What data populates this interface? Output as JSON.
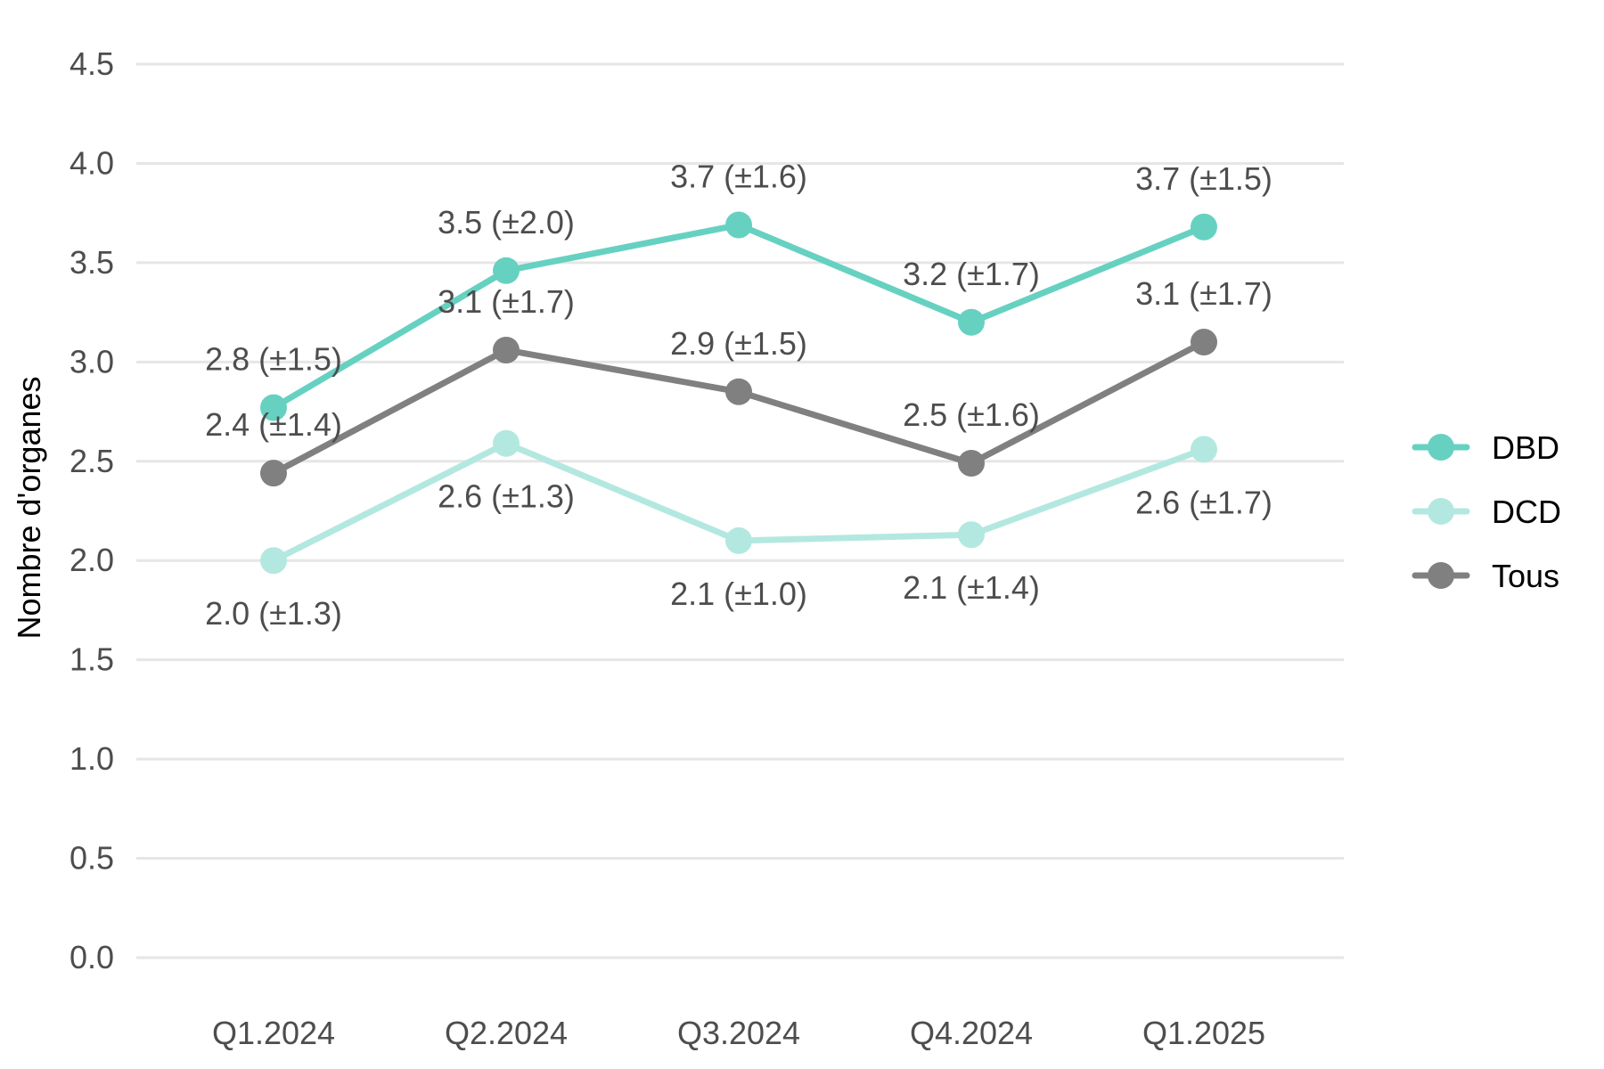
{
  "chart_data": {
    "type": "line",
    "title": "",
    "xlabel": "",
    "ylabel": "Nombre d'organes",
    "categories": [
      "Q1.2024",
      "Q2.2024",
      "Q3.2024",
      "Q4.2024",
      "Q1.2025"
    ],
    "ylim": [
      0,
      4.5
    ],
    "yticks": [
      "0.0",
      "0.5",
      "1.0",
      "1.5",
      "2.0",
      "2.5",
      "3.0",
      "3.5",
      "4.0",
      "4.5"
    ],
    "grid": "horizontal",
    "legend_position": "right",
    "series": [
      {
        "name": "DBD",
        "color": "#66d1c1",
        "values": [
          2.77,
          3.46,
          3.69,
          3.2,
          3.68
        ],
        "labels": [
          "2.8 (±1.5)",
          "3.5 (±2.0)",
          "3.7 (±1.6)",
          "3.2 (±1.7)",
          "3.7 (±1.5)"
        ]
      },
      {
        "name": "DCD",
        "color": "#b3e8e0",
        "values": [
          2.0,
          2.59,
          2.1,
          2.13,
          2.56
        ],
        "labels": [
          "2.0 (±1.3)",
          "2.6 (±1.3)",
          "2.1 (±1.0)",
          "2.1 (±1.4)",
          "2.6 (±1.7)"
        ]
      },
      {
        "name": "Tous",
        "color": "#808080",
        "values": [
          2.44,
          3.06,
          2.85,
          2.49,
          3.1
        ],
        "labels": [
          "2.4 (±1.4)",
          "3.1 (±1.7)",
          "2.9 (±1.5)",
          "2.5 (±1.6)",
          "3.1 (±1.7)"
        ]
      }
    ]
  }
}
